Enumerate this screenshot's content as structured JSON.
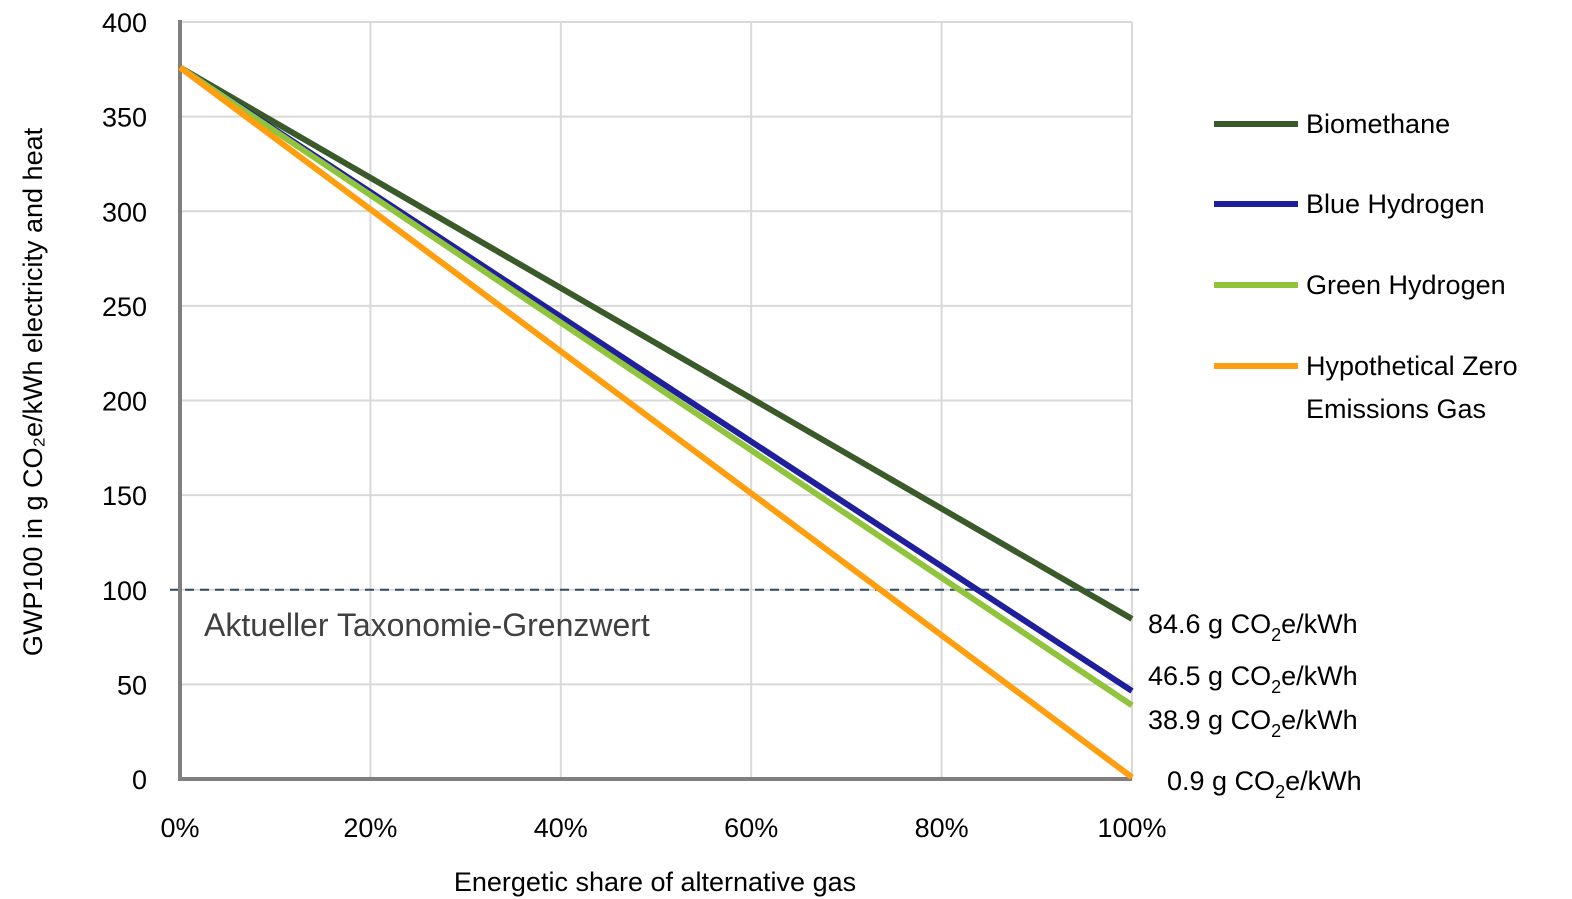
{
  "chart_data": {
    "type": "line",
    "xlabel": "Energetic share of alternative gas",
    "ylabel": "GWP100 in g CO₂e/kWh electricity and heat",
    "xlim": [
      0,
      100
    ],
    "ylim": [
      0,
      400
    ],
    "x_ticks": [
      "0%",
      "20%",
      "40%",
      "60%",
      "80%",
      "100%"
    ],
    "x_tick_values": [
      0,
      20,
      40,
      60,
      80,
      100
    ],
    "y_ticks": [
      "0",
      "50",
      "100",
      "150",
      "200",
      "250",
      "300",
      "350",
      "400"
    ],
    "y_tick_values": [
      0,
      50,
      100,
      150,
      200,
      250,
      300,
      350,
      400
    ],
    "grid": true,
    "legend_position": "right",
    "series": [
      {
        "name": "Biomethane",
        "color": "#3b5a2a",
        "x": [
          0,
          100
        ],
        "y": [
          376,
          84.6
        ],
        "end_label": {
          "value": "84.6 g CO",
          "sub": "2",
          "unit": "e/kWh"
        }
      },
      {
        "name": "Blue Hydrogen",
        "color": "#1f1f9e",
        "x": [
          0,
          100
        ],
        "y": [
          376,
          46.5
        ],
        "end_label": {
          "value": "46.5 g CO",
          "sub": "2",
          "unit": "e/kWh"
        }
      },
      {
        "name": "Green Hydrogen",
        "color": "#8fc43c",
        "x": [
          0,
          100
        ],
        "y": [
          376,
          38.9
        ],
        "end_label": {
          "value": "38.9 g CO",
          "sub": "2",
          "unit": "e/kWh"
        }
      },
      {
        "name": "Hypothetical Zero Emissions Gas",
        "legend_lines": [
          "Hypothetical Zero",
          "Emissions Gas"
        ],
        "color": "#ff9e0f",
        "x": [
          0,
          100
        ],
        "y": [
          376,
          0.9
        ],
        "end_label": {
          "value": "0.9 g CO",
          "sub": "2",
          "unit": "e/kWh"
        }
      }
    ],
    "reference_line": {
      "y": 100,
      "label": "Aktueller Taxonomie-Grenzwert",
      "color": "#2e4a6b",
      "style": "dashed"
    }
  }
}
